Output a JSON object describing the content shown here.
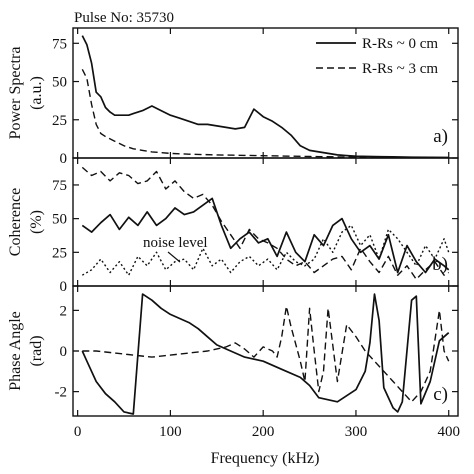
{
  "chart_data": {
    "type": "line",
    "title": "Pulse  No: 35730",
    "xlabel": "Frequency (kHz)",
    "xlim": [
      -5,
      410
    ],
    "xticks": [
      "0",
      "100",
      "200",
      "300",
      "400"
    ],
    "legend": {
      "placement": "top-right",
      "entries": [
        {
          "name": "R-Rs ~ 0 cm",
          "style": "solid"
        },
        {
          "name": "R-Rs ~ 3 cm",
          "style": "dashed"
        }
      ]
    },
    "panels": [
      {
        "id": "power",
        "panel_label": "a)",
        "ylabel_lines": [
          "Power Spectra",
          "(a.u.)"
        ],
        "ylim": [
          0,
          85
        ],
        "yticks": [
          "0",
          "25",
          "50",
          "75"
        ],
        "series": [
          {
            "name": "R-Rs ~ 0 cm",
            "style": "solid",
            "x": [
              5,
              10,
              15,
              20,
              25,
              30,
              35,
              40,
              45,
              50,
              55,
              60,
              70,
              80,
              90,
              100,
              110,
              120,
              130,
              140,
              150,
              160,
              170,
              180,
              190,
              200,
              210,
              220,
              230,
              240,
              250,
              260,
              270,
              280,
              290,
              300,
              320,
              340,
              360,
              380,
              400
            ],
            "y": [
              80,
              74,
              62,
              43,
              40,
              33,
              30,
              28,
              28,
              28,
              28,
              29,
              31,
              34,
              31,
              28,
              26,
              24,
              22,
              22,
              21,
              20,
              19,
              20,
              32,
              27,
              24,
              20,
              15,
              8,
              5,
              4,
              3,
              2,
              1.6,
              1.2,
              0.9,
              0.7,
              0.5,
              0.4,
              0.3
            ]
          },
          {
            "name": "R-Rs ~ 3 cm",
            "style": "dashed",
            "x": [
              5,
              10,
              15,
              20,
              25,
              30,
              40,
              50,
              60,
              70,
              80,
              100,
              120,
              150,
              200,
              250,
              300,
              350,
              400
            ],
            "y": [
              58,
              52,
              35,
              22,
              16,
              14,
              11,
              8,
              6,
              5,
              4,
              3,
              2.5,
              2,
              1.5,
              1,
              0.5,
              0.3,
              0.2
            ]
          }
        ]
      },
      {
        "id": "coherence",
        "panel_label": "b)",
        "ylabel_lines": [
          "Coherence",
          "(%)"
        ],
        "ylim": [
          0,
          95
        ],
        "yticks": [
          "0",
          "25",
          "50",
          "75"
        ],
        "annotation": "noise level",
        "series": [
          {
            "name": "R-Rs ~ 0 cm",
            "style": "solid",
            "x": [
              5,
              15,
              25,
              35,
              45,
              55,
              65,
              75,
              85,
              95,
              105,
              115,
              125,
              135,
              145,
              155,
              165,
              175,
              185,
              195,
              205,
              215,
              225,
              235,
              245,
              255,
              265,
              275,
              285,
              295,
              305,
              315,
              325,
              335,
              345,
              355,
              365,
              375,
              385,
              395,
              400
            ],
            "y": [
              45,
              40,
              47,
              53,
              42,
              51,
              45,
              55,
              45,
              50,
              58,
              53,
              55,
              60,
              65,
              45,
              28,
              35,
              40,
              32,
              35,
              22,
              40,
              25,
              18,
              38,
              30,
              45,
              50,
              35,
              25,
              30,
              20,
              38,
              10,
              30,
              18,
              10,
              20,
              15,
              12
            ]
          },
          {
            "name": "R-Rs ~ 3 cm",
            "style": "dashed",
            "x": [
              5,
              15,
              25,
              35,
              45,
              55,
              65,
              75,
              85,
              95,
              105,
              115,
              125,
              135,
              145,
              155,
              165,
              175,
              185,
              195,
              205,
              215,
              225,
              235,
              245,
              255,
              265,
              275,
              285,
              295,
              305,
              315,
              325,
              335,
              345,
              355,
              365,
              375,
              385,
              395,
              400
            ],
            "y": [
              88,
              82,
              85,
              78,
              84,
              82,
              76,
              78,
              85,
              72,
              78,
              70,
              65,
              68,
              60,
              48,
              38,
              28,
              42,
              35,
              32,
              28,
              20,
              15,
              18,
              10,
              15,
              20,
              22,
              12,
              28,
              18,
              10,
              22,
              8,
              15,
              5,
              12,
              18,
              8,
              10
            ]
          },
          {
            "name": "noise level",
            "style": "dotted",
            "x": [
              5,
              15,
              25,
              35,
              45,
              55,
              65,
              75,
              85,
              95,
              105,
              115,
              125,
              135,
              145,
              155,
              165,
              175,
              185,
              195,
              205,
              215,
              225,
              235,
              245,
              255,
              265,
              275,
              285,
              295,
              305,
              315,
              325,
              335,
              345,
              355,
              365,
              375,
              385,
              395,
              400
            ],
            "y": [
              8,
              12,
              20,
              10,
              18,
              8,
              22,
              15,
              25,
              12,
              18,
              20,
              12,
              28,
              15,
              20,
              10,
              18,
              22,
              15,
              20,
              12,
              25,
              18,
              15,
              20,
              35,
              25,
              40,
              45,
              30,
              38,
              20,
              42,
              35,
              25,
              15,
              30,
              20,
              35,
              25
            ]
          }
        ]
      },
      {
        "id": "phase",
        "panel_label": "c)",
        "ylabel_lines": [
          "Phase Angle",
          "(rad)"
        ],
        "ylim": [
          -3.2,
          3.2
        ],
        "yticks": [
          "-2",
          "0",
          "2"
        ],
        "series": [
          {
            "name": "R-Rs ~ 0 cm",
            "style": "solid",
            "x": [
              5,
              10,
              20,
              30,
              40,
              50,
              60,
              70,
              80,
              90,
              100,
              110,
              120,
              130,
              140,
              150,
              160,
              180,
              200,
              220,
              240,
              250,
              260,
              280,
              300,
              310,
              315,
              320,
              325,
              330,
              340,
              345,
              350,
              360,
              365,
              370,
              380,
              390,
              400
            ],
            "y": [
              0,
              -0.5,
              -1.5,
              -2.1,
              -2.5,
              -3,
              -3.1,
              2.8,
              2.5,
              2.1,
              1.8,
              1.6,
              1.4,
              1.1,
              0.7,
              0.3,
              0.1,
              -0.3,
              -0.5,
              -0.9,
              -1.3,
              -1.7,
              -2.3,
              -2.5,
              -1.9,
              -1,
              0.4,
              2.8,
              1.5,
              -1.8,
              -2.8,
              -3,
              -2.5,
              2.5,
              2.7,
              -2.6,
              -1.5,
              0.5,
              0.9
            ]
          },
          {
            "name": "R-Rs ~ 3 cm",
            "style": "dashed",
            "x": [
              5,
              20,
              40,
              60,
              80,
              100,
              120,
              140,
              160,
              170,
              180,
              190,
              200,
              210,
              215,
              220,
              225,
              230,
              240,
              245,
              250,
              255,
              260,
              265,
              270,
              280,
              290,
              300,
              310,
              320,
              330,
              340,
              350,
              360,
              370,
              380,
              390,
              395,
              400
            ],
            "y": [
              0,
              0,
              -0.1,
              -0.2,
              -0.3,
              -0.2,
              -0.1,
              0,
              0.2,
              0.4,
              0.1,
              -0.3,
              0.2,
              0,
              -0.3,
              0.7,
              2.2,
              1.2,
              -0.5,
              -1.5,
              2.1,
              0,
              -2,
              -1,
              2.1,
              -1.5,
              1.3,
              0.7,
              0,
              -0.5,
              -1,
              -1.5,
              -2,
              -2.5,
              -2,
              -1,
              2,
              0,
              -0.5
            ]
          }
        ]
      }
    ]
  }
}
